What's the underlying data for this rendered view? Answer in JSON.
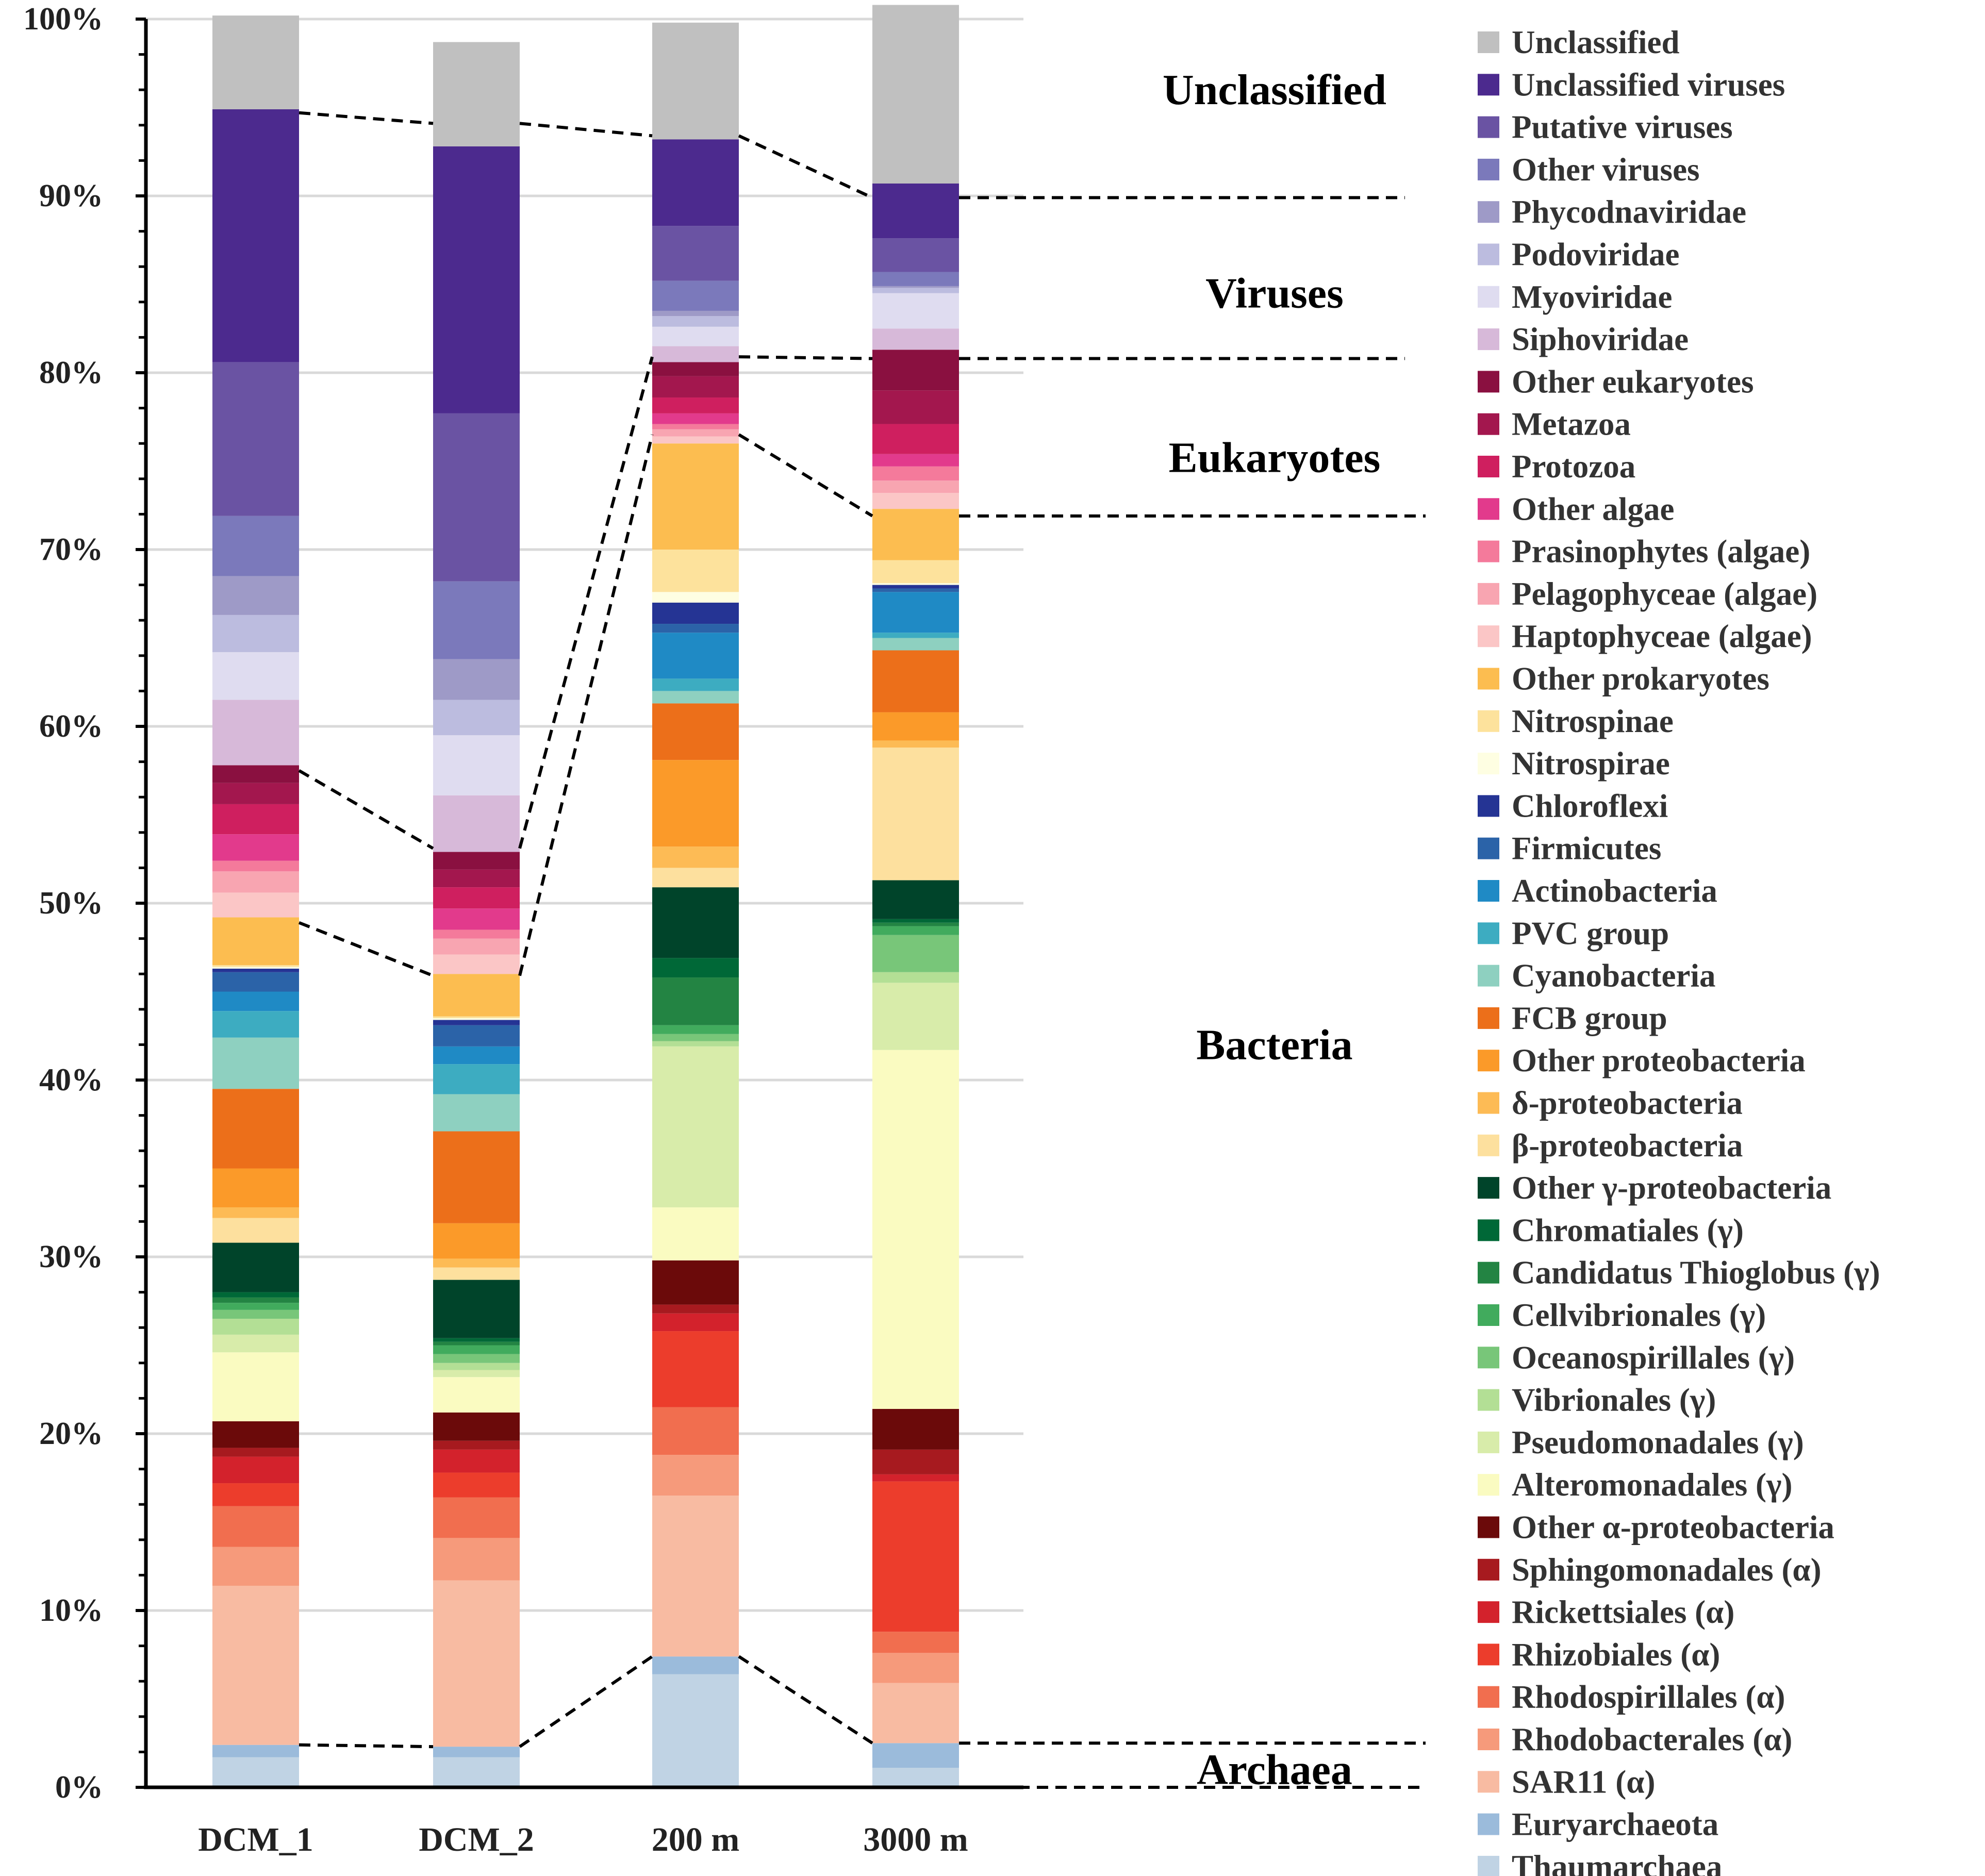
{
  "chart_data": {
    "type": "bar",
    "stacked": true,
    "title": "",
    "xlabel": "",
    "ylabel": "",
    "ylim": [
      0,
      100
    ],
    "y_tick_labels": [
      "0%",
      "10%",
      "20%",
      "30%",
      "40%",
      "50%",
      "60%",
      "70%",
      "80%",
      "90%",
      "100%"
    ],
    "grid": true,
    "legend_position": "right",
    "categories": [
      "DCM_1",
      "DCM_2",
      "200 m",
      "3000 m"
    ],
    "series": [
      {
        "name": "Thaumarchaea",
        "color": "#c0d3e4",
        "values": [
          1.7,
          1.7,
          6.4,
          1.1
        ]
      },
      {
        "name": "Euryarchaeota",
        "color": "#9bbbdb",
        "values": [
          0.7,
          0.6,
          1.0,
          1.4
        ]
      },
      {
        "name": "SAR11 (α)",
        "color": "#f8bba2",
        "values": [
          9.0,
          9.4,
          9.1,
          3.4
        ]
      },
      {
        "name": "Rhodobacterales (α)",
        "color": "#f69a7b",
        "values": [
          2.2,
          2.4,
          2.3,
          1.7
        ]
      },
      {
        "name": "Rhodospirillales (α)",
        "color": "#f16e4f",
        "values": [
          2.3,
          2.3,
          2.7,
          1.2
        ]
      },
      {
        "name": "Rhizobiales (α)",
        "color": "#ec3d2c",
        "values": [
          1.3,
          1.4,
          4.3,
          8.5
        ]
      },
      {
        "name": "Rickettsiales (α)",
        "color": "#d3222c",
        "values": [
          1.5,
          1.3,
          1.0,
          0.4
        ]
      },
      {
        "name": "Sphingomonadales (α)",
        "color": "#a71a1f",
        "values": [
          0.5,
          0.5,
          0.5,
          1.4
        ]
      },
      {
        "name": "Other α-proteobacteria",
        "color": "#6b0a0a",
        "values": [
          1.5,
          1.6,
          2.5,
          2.3
        ]
      },
      {
        "name": "Alteromonadales (γ)",
        "color": "#fafbc1",
        "values": [
          3.9,
          2.0,
          3.0,
          20.3
        ]
      },
      {
        "name": "Pseudomonadales (γ)",
        "color": "#d8ecaa",
        "values": [
          1.0,
          0.4,
          9.1,
          3.8
        ]
      },
      {
        "name": "Vibrionales (γ)",
        "color": "#b3df95",
        "values": [
          0.9,
          0.4,
          0.3,
          0.6
        ]
      },
      {
        "name": "Oceanospirillales  (γ)",
        "color": "#78c679",
        "values": [
          0.5,
          0.5,
          0.4,
          2.1
        ]
      },
      {
        "name": "Cellvibrionales  (γ)",
        "color": "#41ab5d",
        "values": [
          0.4,
          0.5,
          0.5,
          0.5
        ]
      },
      {
        "name": "Candidatus Thioglobus (γ)",
        "color": "#238443",
        "values": [
          0.3,
          0.2,
          2.7,
          0.2
        ]
      },
      {
        "name": "Chromatiales (γ)",
        "color": "#006837",
        "values": [
          0.3,
          0.2,
          1.1,
          0.2
        ]
      },
      {
        "name": "Other γ-proteobacteria",
        "color": "#00442a",
        "values": [
          2.8,
          3.3,
          4.0,
          2.2
        ]
      },
      {
        "name": "β-proteobacteria",
        "color": "#fde09e",
        "values": [
          1.4,
          0.7,
          1.1,
          7.5
        ]
      },
      {
        "name": "δ-proteobacteria",
        "color": "#fdbb55",
        "values": [
          0.6,
          0.5,
          1.2,
          0.4
        ]
      },
      {
        "name": "Other proteobacteria",
        "color": "#fb9a29",
        "values": [
          2.2,
          2.0,
          4.9,
          1.6
        ]
      },
      {
        "name": "FCB group",
        "color": "#ec6f1a",
        "values": [
          4.5,
          5.2,
          3.2,
          3.5
        ]
      },
      {
        "name": "Cyanobacteria",
        "color": "#8ed0c0",
        "values": [
          2.9,
          2.1,
          0.7,
          0.7
        ]
      },
      {
        "name": "PVC group",
        "color": "#3dacc1",
        "values": [
          1.5,
          1.7,
          0.7,
          0.3
        ]
      },
      {
        "name": "Actinobacteria",
        "color": "#1f8ac5",
        "values": [
          1.1,
          1.0,
          2.6,
          2.3
        ]
      },
      {
        "name": "Firmicutes",
        "color": "#2b63a8",
        "values": [
          1.1,
          1.2,
          0.5,
          0.2
        ]
      },
      {
        "name": "Chloroflexi",
        "color": "#253494",
        "values": [
          0.2,
          0.3,
          1.2,
          0.2
        ]
      },
      {
        "name": "Nitrospirae",
        "color": "#fefee2",
        "values": [
          0.1,
          0.1,
          0.6,
          0.1
        ]
      },
      {
        "name": "Nitrospinae",
        "color": "#fde29c",
        "values": [
          0.1,
          0.1,
          2.4,
          1.3
        ]
      },
      {
        "name": "Other prokaryotes",
        "color": "#fcbd50",
        "values": [
          2.7,
          2.4,
          6.0,
          2.9
        ]
      },
      {
        "name": "Haptophyceae (algae)",
        "color": "#fbc6c6",
        "values": [
          1.4,
          1.1,
          0.4,
          0.9
        ]
      },
      {
        "name": "Pelagophyceae (algae)",
        "color": "#f8a5b1",
        "values": [
          1.2,
          0.9,
          0.4,
          0.7
        ]
      },
      {
        "name": "Prasinophytes (algae)",
        "color": "#f47a9b",
        "values": [
          0.6,
          0.5,
          0.3,
          0.8
        ]
      },
      {
        "name": "Other algae",
        "color": "#e23a8c",
        "values": [
          1.5,
          1.2,
          0.6,
          0.7
        ]
      },
      {
        "name": "Protozoa",
        "color": "#cf1f5f",
        "values": [
          1.7,
          1.2,
          0.9,
          1.7
        ]
      },
      {
        "name": "Metazoa",
        "color": "#a3174e",
        "values": [
          1.2,
          1.0,
          1.2,
          1.9
        ]
      },
      {
        "name": "Other eukaryotes",
        "color": "#8a1040",
        "values": [
          1.0,
          1.0,
          0.8,
          2.3
        ]
      },
      {
        "name": "Siphoviridae",
        "color": "#d7b9d9",
        "values": [
          3.7,
          3.2,
          0.9,
          1.2
        ]
      },
      {
        "name": "Myoviridae",
        "color": "#dfdcf0",
        "values": [
          2.7,
          3.4,
          1.1,
          2.0
        ]
      },
      {
        "name": "Podoviridae",
        "color": "#bcbcdf",
        "values": [
          2.1,
          2.0,
          0.6,
          0.3
        ]
      },
      {
        "name": "Phycodnaviridae",
        "color": "#9e9ac7",
        "values": [
          2.2,
          2.3,
          0.3,
          0.1
        ]
      },
      {
        "name": "Other viruses",
        "color": "#7b79bb",
        "values": [
          3.4,
          4.4,
          1.7,
          0.8
        ]
      },
      {
        "name": "Putative viruses",
        "color": "#6a53a3",
        "values": [
          8.7,
          9.5,
          3.1,
          1.9
        ]
      },
      {
        "name": "Unclassified viruses",
        "color": "#4c2a8e",
        "values": [
          14.3,
          15.1,
          4.9,
          3.1
        ]
      },
      {
        "name": "Unclassified",
        "color": "#c0c0c0",
        "values": [
          5.3,
          5.9,
          6.6,
          10.1
        ]
      }
    ],
    "group_labels": [
      {
        "label": "Unclassified",
        "y": 96.0
      },
      {
        "label": "Viruses",
        "y": 84.5
      },
      {
        "label": "Eukaryotes",
        "y": 75.2
      },
      {
        "label": "Bacteria",
        "y": 42.0
      },
      {
        "label": "Archaea",
        "y": 1.0
      }
    ],
    "group_boundaries": [
      {
        "name": "Unclassified/Viruses",
        "values": [
          94.7,
          94.1,
          93.4,
          89.9
        ]
      },
      {
        "name": "Viruses/Eukaryotes",
        "values": [
          57.5,
          53.1,
          80.9,
          80.8
        ]
      },
      {
        "name": "Eukaryotes/Bacteria",
        "values": [
          48.9,
          45.9,
          76.5,
          71.9
        ]
      },
      {
        "name": "Bacteria/Archaea",
        "values": [
          2.4,
          2.3,
          7.4,
          2.5
        ]
      },
      {
        "name": "Baseline",
        "values": [
          0,
          0,
          0,
          0
        ]
      }
    ]
  }
}
